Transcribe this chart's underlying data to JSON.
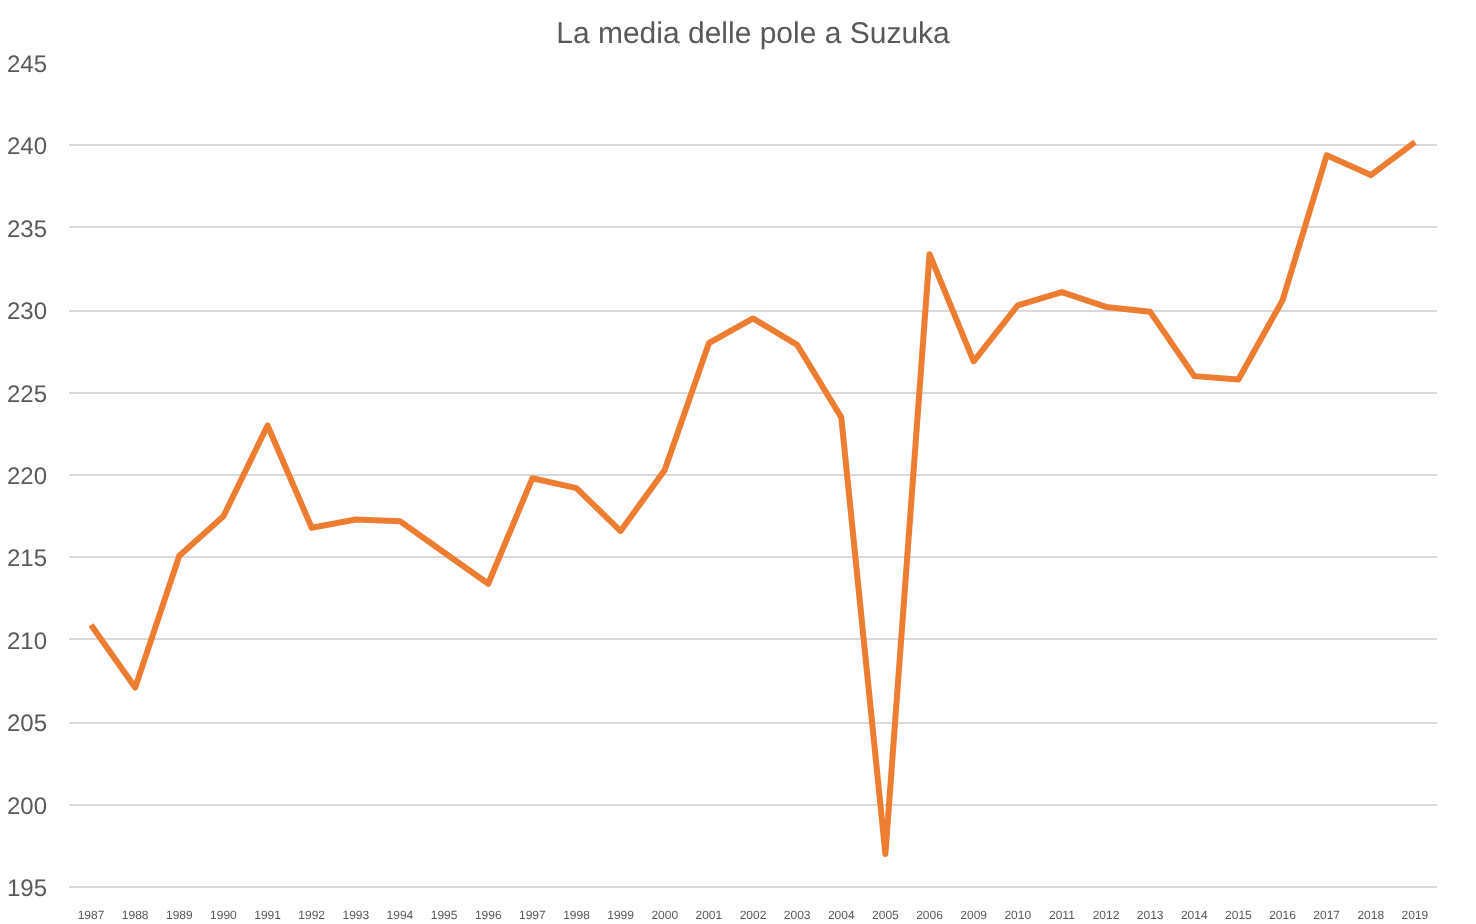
{
  "chart_data": {
    "type": "line",
    "title": "La media delle pole a Suzuka",
    "categories": [
      "1987",
      "1988",
      "1989",
      "1990",
      "1991",
      "1992",
      "1993",
      "1994",
      "1995",
      "1996",
      "1997",
      "1998",
      "1999",
      "2000",
      "2001",
      "2002",
      "2003",
      "2004",
      "2005",
      "2006",
      "2009",
      "2010",
      "2011",
      "2012",
      "2013",
      "2014",
      "2015",
      "2016",
      "2017",
      "2018",
      "2019"
    ],
    "series": [
      {
        "color": "#ed7d31",
        "values": [
          210.9,
          207.1,
          215.1,
          217.5,
          223.0,
          216.8,
          217.3,
          217.2,
          215.3,
          213.4,
          219.8,
          219.2,
          216.6,
          220.3,
          228.0,
          229.5,
          227.9,
          223.5,
          197.0,
          233.4,
          226.9,
          230.3,
          231.1,
          230.2,
          229.9,
          226.0,
          225.8,
          230.6,
          239.4,
          238.2,
          240.2
        ]
      }
    ],
    "ylim": [
      195,
      245
    ],
    "yticks": [
      195,
      200,
      205,
      210,
      215,
      220,
      225,
      230,
      235,
      240,
      245
    ],
    "grid": "y",
    "marker": "none",
    "line_style": "solid"
  }
}
